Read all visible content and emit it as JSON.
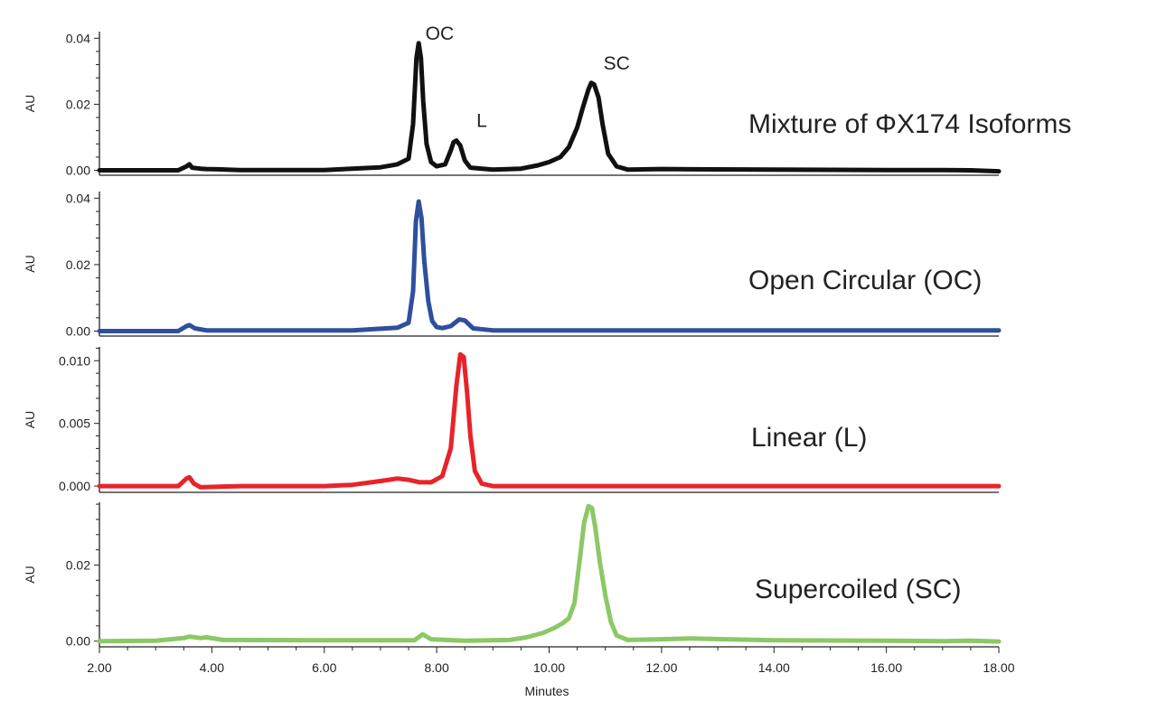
{
  "chart_data": {
    "type": "line",
    "xlabel": "Minutes",
    "xlim": [
      2.0,
      18.0
    ],
    "x_ticks": [
      "2.00",
      "4.00",
      "6.00",
      "8.00",
      "10.00",
      "12.00",
      "14.00",
      "16.00",
      "18.00"
    ],
    "grid": false,
    "panels": [
      {
        "title": "Mixture of ΦX174 Isoforms",
        "ylabel": "AU",
        "ylim": [
          -0.0015,
          0.042
        ],
        "y_ticks": [
          "0.00",
          "0.02",
          "0.04"
        ],
        "y_tick_values": [
          0.0,
          0.02,
          0.04
        ],
        "color": "#111111",
        "annotations": [
          {
            "text": "OC",
            "x": 7.65,
            "y": 0.039
          },
          {
            "text": "L",
            "x": 8.4,
            "y": 0.0126
          },
          {
            "text": "SC",
            "x": 10.8,
            "y": 0.03
          }
        ],
        "series": [
          {
            "x": [
              2.0,
              3.4,
              3.55,
              3.6,
              3.65,
              3.8,
              3.9,
              4.1,
              4.5,
              6.0,
              7.0,
              7.3,
              7.5,
              7.58,
              7.64,
              7.68,
              7.72,
              7.76,
              7.82,
              7.9,
              8.0,
              8.15,
              8.25,
              8.3,
              8.35,
              8.42,
              8.5,
              8.6,
              9.0,
              9.5,
              9.8,
              10.0,
              10.2,
              10.35,
              10.5,
              10.6,
              10.7,
              10.75,
              10.8,
              10.88,
              10.95,
              11.05,
              11.2,
              11.4,
              12.0,
              12.5,
              14.0,
              16.0,
              17.0,
              17.5,
              18.0
            ],
            "y": [
              0.0,
              0.0,
              0.0012,
              0.0018,
              0.0008,
              0.0005,
              0.0004,
              0.0003,
              0.0001,
              0.0001,
              0.0009,
              0.0018,
              0.0035,
              0.014,
              0.034,
              0.0385,
              0.034,
              0.021,
              0.008,
              0.0025,
              0.0012,
              0.0018,
              0.006,
              0.0085,
              0.009,
              0.0075,
              0.003,
              0.0008,
              0.0002,
              0.0005,
              0.0015,
              0.0025,
              0.004,
              0.007,
              0.013,
              0.019,
              0.0245,
              0.0265,
              0.026,
              0.022,
              0.014,
              0.005,
              0.0012,
              0.0002,
              0.0004,
              0.0003,
              0.0002,
              0.0001,
              0.0001,
              0.0,
              -0.0003
            ]
          }
        ]
      },
      {
        "title": "Open Circular (OC)",
        "ylabel": "AU",
        "ylim": [
          -0.0015,
          0.042
        ],
        "y_ticks": [
          "0.00",
          "0.02",
          "0.04"
        ],
        "y_tick_values": [
          0.0,
          0.02,
          0.04
        ],
        "color": "#2f4f9e",
        "annotations": [],
        "series": [
          {
            "x": [
              2.0,
              3.4,
              3.55,
              3.6,
              3.7,
              3.9,
              5.0,
              6.5,
              7.0,
              7.3,
              7.5,
              7.58,
              7.63,
              7.68,
              7.73,
              7.78,
              7.85,
              7.92,
              8.0,
              8.1,
              8.25,
              8.4,
              8.5,
              8.65,
              9.0,
              12.0,
              15.0,
              18.0
            ],
            "y": [
              0.0,
              0.0,
              0.0015,
              0.0018,
              0.0008,
              0.0002,
              0.0002,
              0.0002,
              0.0007,
              0.001,
              0.0025,
              0.012,
              0.033,
              0.039,
              0.034,
              0.021,
              0.009,
              0.003,
              0.0012,
              0.0009,
              0.0015,
              0.0035,
              0.0032,
              0.0008,
              0.0002,
              0.0002,
              0.0002,
              0.0002
            ]
          }
        ]
      },
      {
        "title": "Linear (L)",
        "ylabel": "AU",
        "ylim": [
          -0.0005,
          0.0111
        ],
        "y_ticks": [
          "0.000",
          "0.005",
          "0.010"
        ],
        "y_tick_values": [
          0.0,
          0.005,
          0.01
        ],
        "color": "#e8232a",
        "annotations": [],
        "series": [
          {
            "x": [
              2.0,
              3.4,
              3.55,
              3.6,
              3.68,
              3.8,
              4.5,
              6.0,
              6.5,
              7.0,
              7.3,
              7.5,
              7.7,
              7.9,
              8.1,
              8.25,
              8.35,
              8.42,
              8.48,
              8.54,
              8.6,
              8.68,
              8.8,
              9.0,
              12.0,
              16.0,
              18.0
            ],
            "y": [
              0.0,
              0.0,
              0.0006,
              0.0007,
              0.0002,
              -0.0001,
              0.0,
              0.0,
              0.0001,
              0.0004,
              0.0006,
              0.0005,
              0.0003,
              0.0003,
              0.0008,
              0.003,
              0.008,
              0.0105,
              0.0103,
              0.0075,
              0.004,
              0.0012,
              0.0002,
              0.0,
              0.0,
              0.0,
              0.0
            ]
          }
        ]
      },
      {
        "title": "Supercoiled (SC)",
        "ylabel": "AU",
        "ylim": [
          -0.0015,
          0.0365
        ],
        "y_ticks": [
          "0.00",
          "0.02"
        ],
        "y_tick_values": [
          0.0,
          0.02
        ],
        "color": "#8cc865",
        "annotations": [],
        "series": [
          {
            "x": [
              2.0,
              3.0,
              3.5,
              3.6,
              3.8,
              3.9,
              4.2,
              6.0,
              7.6,
              7.75,
              7.9,
              8.5,
              9.3,
              9.6,
              9.9,
              10.1,
              10.25,
              10.35,
              10.45,
              10.55,
              10.62,
              10.7,
              10.76,
              10.82,
              10.9,
              11.0,
              11.1,
              11.2,
              11.4,
              12.0,
              12.5,
              14.0,
              16.0,
              17.0,
              17.5,
              18.0
            ],
            "y": [
              0.0,
              0.0001,
              0.0008,
              0.0012,
              0.0008,
              0.001,
              0.0003,
              0.0002,
              0.0002,
              0.0018,
              0.0005,
              0.0001,
              0.0003,
              0.001,
              0.0022,
              0.0035,
              0.0048,
              0.006,
              0.01,
              0.022,
              0.031,
              0.0355,
              0.035,
              0.03,
              0.021,
              0.012,
              0.005,
              0.0015,
              0.0003,
              0.0005,
              0.0007,
              0.0002,
              0.0001,
              0.0,
              0.0001,
              -0.0001
            ]
          }
        ]
      }
    ]
  }
}
